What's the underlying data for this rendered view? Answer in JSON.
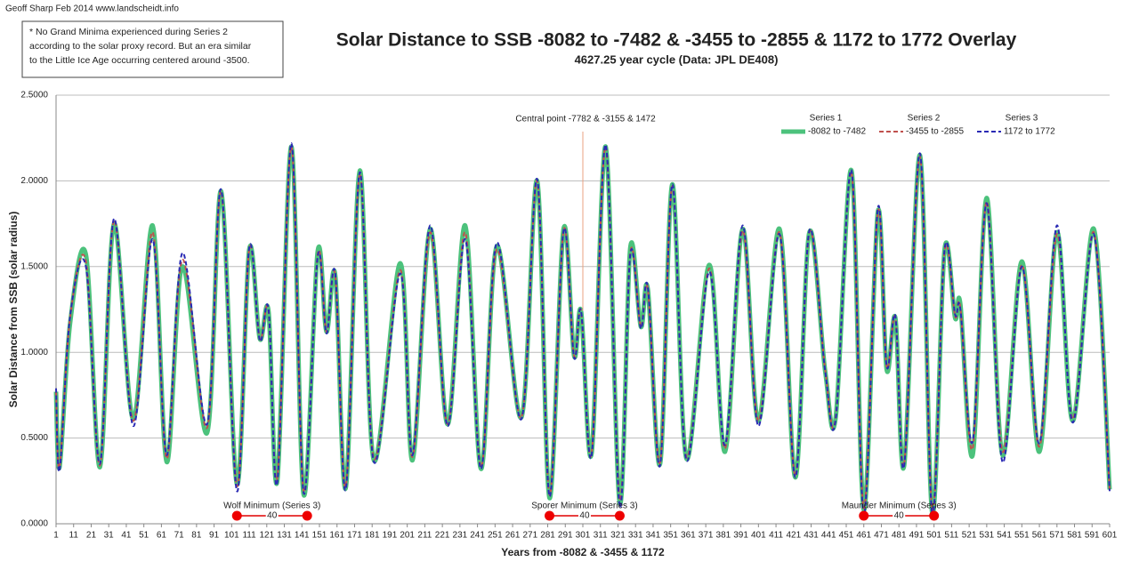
{
  "chart_data": {
    "type": "line",
    "credit": "Geoff Sharp Feb 2014  www.landscheidt.info",
    "note": [
      "* No Grand Minima experienced during Series 2",
      "according to the solar proxy record. But an era similar",
      "to the Little Ice Age occurring centered around -3500."
    ],
    "title": "Solar Distance to SSB -8082 to -7482 & -3455 to -2855 & 1172 to 1772 Overlay",
    "subtitle": "4627.25 year cycle (Data: JPL DE408)",
    "x_label": "Years from -8082 & -3455 & 1172",
    "y_label": "Solar Distance from SSB (solar radius)",
    "x": [
      1,
      3,
      9,
      18,
      26,
      34,
      45,
      56,
      64,
      73,
      87,
      95,
      104,
      111,
      117,
      122,
      127,
      135,
      142,
      150,
      155,
      160,
      166,
      174,
      182,
      197,
      204,
      214,
      224,
      234,
      243,
      252,
      266,
      275,
      282,
      290,
      296,
      300,
      306,
      314,
      322,
      328,
      334,
      338,
      345,
      352,
      360,
      373,
      382,
      392,
      401,
      413,
      422,
      430,
      439,
      445,
      454,
      461,
      469,
      474,
      479,
      484,
      493,
      500,
      507,
      513,
      516,
      523,
      531,
      540,
      551,
      561,
      571,
      580,
      592,
      601
    ],
    "series": [
      {
        "name": "Series 1",
        "label": "-8082 to -7482",
        "color": "#4cc27c",
        "dash": false,
        "values": [
          0.77,
          0.33,
          1.17,
          1.57,
          0.33,
          1.75,
          0.61,
          1.74,
          0.36,
          1.5,
          0.53,
          1.94,
          0.23,
          1.6,
          1.08,
          1.24,
          0.25,
          2.2,
          0.17,
          1.59,
          1.12,
          1.45,
          0.21,
          2.06,
          0.37,
          1.52,
          0.37,
          1.72,
          0.58,
          1.74,
          0.32,
          1.62,
          0.62,
          2.0,
          0.15,
          1.72,
          0.98,
          1.24,
          0.41,
          2.2,
          0.12,
          1.61,
          1.15,
          1.37,
          0.35,
          1.98,
          0.38,
          1.51,
          0.42,
          1.72,
          0.6,
          1.72,
          0.27,
          1.7,
          0.89,
          0.62,
          2.06,
          0.08,
          1.82,
          0.9,
          1.2,
          0.34,
          2.15,
          0.06,
          1.6,
          1.2,
          1.28,
          0.4,
          1.9,
          0.4,
          1.53,
          0.42,
          1.7,
          0.6,
          1.72,
          0.2
        ]
      },
      {
        "name": "Series 2",
        "label": "-3455 to -2855",
        "color": "#c0504d",
        "dash": true,
        "values": [
          0.77,
          0.33,
          1.2,
          1.53,
          0.34,
          1.77,
          0.6,
          1.7,
          0.38,
          1.54,
          0.56,
          1.94,
          0.22,
          1.6,
          1.08,
          1.24,
          0.27,
          2.2,
          0.19,
          1.57,
          1.12,
          1.45,
          0.22,
          2.04,
          0.38,
          1.48,
          0.39,
          1.7,
          0.58,
          1.7,
          0.33,
          1.6,
          0.62,
          2.0,
          0.17,
          1.71,
          0.98,
          1.24,
          0.41,
          2.2,
          0.14,
          1.58,
          1.15,
          1.37,
          0.36,
          1.97,
          0.39,
          1.49,
          0.44,
          1.71,
          0.6,
          1.7,
          0.28,
          1.7,
          0.9,
          0.62,
          2.05,
          0.09,
          1.82,
          0.92,
          1.2,
          0.35,
          2.14,
          0.08,
          1.59,
          1.21,
          1.26,
          0.44,
          1.88,
          0.42,
          1.51,
          0.45,
          1.69,
          0.61,
          1.7,
          0.2
        ]
      },
      {
        "name": "Series 3",
        "label": "1172 to 1772",
        "color": "#2a2ab4",
        "dash": true,
        "values": [
          0.79,
          0.31,
          1.21,
          1.5,
          0.35,
          1.78,
          0.57,
          1.66,
          0.4,
          1.58,
          0.58,
          1.95,
          0.19,
          1.61,
          1.07,
          1.25,
          0.24,
          2.22,
          0.18,
          1.56,
          1.11,
          1.46,
          0.2,
          2.05,
          0.36,
          1.46,
          0.4,
          1.74,
          0.57,
          1.66,
          0.32,
          1.64,
          0.61,
          2.01,
          0.16,
          1.71,
          0.97,
          1.24,
          0.4,
          2.21,
          0.1,
          1.57,
          1.14,
          1.38,
          0.34,
          1.98,
          0.37,
          1.47,
          0.46,
          1.74,
          0.57,
          1.69,
          0.27,
          1.71,
          0.89,
          0.61,
          2.06,
          0.05,
          1.84,
          0.92,
          1.21,
          0.34,
          2.16,
          0.05,
          1.6,
          1.22,
          1.25,
          0.48,
          1.87,
          0.36,
          1.5,
          0.47,
          1.74,
          0.59,
          1.69,
          0.19
        ]
      }
    ],
    "xlim": [
      1,
      601
    ],
    "xticks": [
      1,
      11,
      21,
      31,
      41,
      51,
      61,
      71,
      81,
      91,
      101,
      111,
      121,
      131,
      141,
      151,
      161,
      171,
      181,
      191,
      201,
      211,
      221,
      231,
      241,
      251,
      261,
      271,
      281,
      291,
      301,
      311,
      321,
      331,
      341,
      351,
      361,
      371,
      381,
      391,
      401,
      411,
      421,
      431,
      441,
      451,
      461,
      471,
      481,
      491,
      501,
      511,
      521,
      531,
      541,
      551,
      561,
      571,
      581,
      591,
      601
    ],
    "ylim": [
      0,
      2.5
    ],
    "yticks": [
      {
        "value": 0,
        "label": "0.0000"
      },
      {
        "value": 0.5,
        "label": "0.5000"
      },
      {
        "value": 1,
        "label": "1.0000"
      },
      {
        "value": 1.5,
        "label": "1.5000"
      },
      {
        "value": 2,
        "label": "2.0000"
      },
      {
        "value": 2.5,
        "label": "2.5000"
      }
    ],
    "grid": true,
    "legend": "top-right",
    "central": {
      "text": "Central point -7782 & -3155 & 1472",
      "x": 301,
      "y": 1.24
    },
    "minima": [
      {
        "label": "Wolf Minimum (Series 3)",
        "start": 104,
        "end": 144,
        "span": 40
      },
      {
        "label": "Sporer Minimum (Series 3)",
        "start": 282,
        "end": 322,
        "span": 40
      },
      {
        "label": "Maunder Minimum (Series 3)",
        "start": 461,
        "end": 501,
        "span": 40
      }
    ]
  }
}
